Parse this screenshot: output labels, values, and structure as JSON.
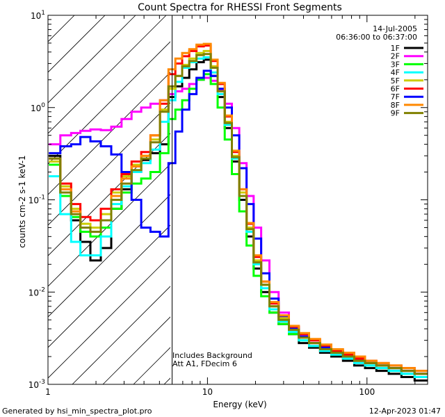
{
  "chart_data": {
    "type": "line",
    "title": "Count Spectra for RHESSI Front Segments",
    "xlabel": "Energy (keV)",
    "ylabel": "counts cm-2 s-1 keV-1",
    "xscale": "log",
    "yscale": "log",
    "xlim": [
      1,
      240
    ],
    "ylim": [
      0.001,
      10
    ],
    "x_tick_labels": [
      "1",
      "10",
      "100"
    ],
    "y_tick_labels": [
      {
        "base": "10",
        "exp": "-3"
      },
      {
        "base": "10",
        "exp": "-2"
      },
      {
        "base": "10",
        "exp": "-1"
      },
      {
        "base": "10",
        "exp": "0"
      },
      {
        "base": "10",
        "exp": "1"
      }
    ],
    "shaded_region_keV": [
      1,
      6
    ],
    "threshold_keV": 6,
    "date": "14-Jul-2005",
    "time_range": "06:36:00 to 06:37:00",
    "notes": [
      "Includes Background",
      "Att A1, FDecim 6"
    ],
    "energy_keV": [
      1.1,
      1.3,
      1.5,
      1.7,
      2.0,
      2.3,
      2.7,
      3.1,
      3.6,
      4.1,
      4.7,
      5.4,
      6.0,
      6.6,
      7.3,
      8.1,
      9.0,
      10.0,
      11.0,
      12.2,
      13.5,
      15.0,
      16.7,
      18.5,
      20.5,
      23.0,
      26.0,
      30.0,
      35.0,
      40.0,
      47.0,
      55.0,
      65.0,
      77.0,
      90.0,
      105.0,
      125.0,
      150.0,
      180.0,
      220.0
    ],
    "series": [
      {
        "name": "1F",
        "color": "#000000",
        "values": [
          0.3,
          0.12,
          0.06,
          0.035,
          0.022,
          0.03,
          0.08,
          0.13,
          0.2,
          0.27,
          0.32,
          0.4,
          1.3,
          1.7,
          2.1,
          2.6,
          3.1,
          3.3,
          2.2,
          1.3,
          0.6,
          0.26,
          0.1,
          0.04,
          0.018,
          0.01,
          0.006,
          0.0045,
          0.0035,
          0.0028,
          0.0025,
          0.0022,
          0.002,
          0.0018,
          0.0016,
          0.0015,
          0.0014,
          0.0013,
          0.0012,
          0.0011
        ]
      },
      {
        "name": "2F",
        "color": "#ff00ff",
        "values": [
          0.4,
          0.5,
          0.53,
          0.56,
          0.58,
          0.57,
          0.62,
          0.75,
          0.9,
          1.0,
          1.1,
          1.2,
          1.4,
          1.5,
          1.6,
          1.8,
          2.0,
          2.1,
          1.95,
          1.55,
          1.1,
          0.6,
          0.25,
          0.11,
          0.05,
          0.022,
          0.01,
          0.006,
          0.0042,
          0.0034,
          0.003,
          0.0026,
          0.0023,
          0.0021,
          0.0019,
          0.0017,
          0.0016,
          0.0015,
          0.0014,
          0.0013
        ]
      },
      {
        "name": "3F",
        "color": "#00ff00",
        "values": [
          0.24,
          0.11,
          0.065,
          0.045,
          0.04,
          0.05,
          0.08,
          0.12,
          0.15,
          0.17,
          0.2,
          0.32,
          0.75,
          0.95,
          1.2,
          1.6,
          2.0,
          2.3,
          1.8,
          1.0,
          0.45,
          0.19,
          0.075,
          0.032,
          0.015,
          0.009,
          0.006,
          0.0045,
          0.0035,
          0.003,
          0.0026,
          0.0023,
          0.0021,
          0.0019,
          0.0018,
          0.0016,
          0.0015,
          0.0014,
          0.0013,
          0.0012
        ]
      },
      {
        "name": "4F",
        "color": "#00ffff",
        "values": [
          0.18,
          0.07,
          0.035,
          0.025,
          0.025,
          0.04,
          0.09,
          0.14,
          0.2,
          0.25,
          0.35,
          0.7,
          1.2,
          1.9,
          2.7,
          3.1,
          3.4,
          3.5,
          2.4,
          1.4,
          0.65,
          0.28,
          0.11,
          0.045,
          0.02,
          0.011,
          0.0065,
          0.0048,
          0.0037,
          0.003,
          0.0026,
          0.0023,
          0.0021,
          0.0019,
          0.0017,
          0.0016,
          0.0015,
          0.0014,
          0.0013,
          0.0012
        ]
      },
      {
        "name": "5F",
        "color": "#cccc00",
        "values": [
          0.26,
          0.14,
          0.08,
          0.055,
          0.05,
          0.07,
          0.12,
          0.18,
          0.24,
          0.3,
          0.45,
          0.95,
          1.6,
          2.2,
          2.9,
          3.4,
          3.9,
          4.1,
          2.8,
          1.6,
          0.7,
          0.3,
          0.12,
          0.05,
          0.022,
          0.012,
          0.007,
          0.0052,
          0.004,
          0.0033,
          0.0028,
          0.0025,
          0.0022,
          0.002,
          0.0018,
          0.0017,
          0.0016,
          0.0015,
          0.0014,
          0.0013
        ]
      },
      {
        "name": "6F",
        "color": "#ff0000",
        "values": [
          0.28,
          0.15,
          0.09,
          0.065,
          0.06,
          0.08,
          0.13,
          0.19,
          0.26,
          0.33,
          0.5,
          1.1,
          2.3,
          3.0,
          3.6,
          4.1,
          4.6,
          4.7,
          3.2,
          1.8,
          0.8,
          0.33,
          0.13,
          0.055,
          0.024,
          0.013,
          0.0075,
          0.0055,
          0.0042,
          0.0035,
          0.003,
          0.0026,
          0.0023,
          0.0021,
          0.0019,
          0.0018,
          0.0017,
          0.0016,
          0.0015,
          0.0014
        ]
      },
      {
        "name": "7F",
        "color": "#0000ff",
        "values": [
          0.32,
          0.38,
          0.4,
          0.48,
          0.43,
          0.38,
          0.31,
          0.2,
          0.1,
          0.05,
          0.045,
          0.04,
          0.25,
          0.55,
          0.95,
          1.4,
          2.1,
          2.5,
          2.2,
          1.6,
          1.0,
          0.5,
          0.22,
          0.09,
          0.038,
          0.016,
          0.0085,
          0.0055,
          0.004,
          0.0033,
          0.0028,
          0.0025,
          0.0022,
          0.002,
          0.0018,
          0.0017,
          0.0016,
          0.0015,
          0.0014,
          0.0013
        ]
      },
      {
        "name": "8F",
        "color": "#ff8800",
        "values": [
          0.28,
          0.13,
          0.075,
          0.05,
          0.045,
          0.06,
          0.11,
          0.17,
          0.23,
          0.3,
          0.5,
          1.2,
          2.6,
          3.4,
          3.9,
          4.3,
          4.8,
          4.9,
          3.3,
          1.85,
          0.82,
          0.34,
          0.13,
          0.056,
          0.025,
          0.013,
          0.0078,
          0.0056,
          0.0043,
          0.0036,
          0.0031,
          0.0027,
          0.0024,
          0.0022,
          0.002,
          0.0018,
          0.0017,
          0.0016,
          0.0015,
          0.0014
        ]
      },
      {
        "name": "9F",
        "color": "#808000",
        "values": [
          0.28,
          0.12,
          0.07,
          0.05,
          0.045,
          0.06,
          0.1,
          0.15,
          0.21,
          0.28,
          0.42,
          0.9,
          1.7,
          2.2,
          2.8,
          3.2,
          3.7,
          3.8,
          2.7,
          1.5,
          0.68,
          0.29,
          0.11,
          0.048,
          0.021,
          0.012,
          0.007,
          0.005,
          0.0039,
          0.0032,
          0.0028,
          0.0024,
          0.0022,
          0.002,
          0.0018,
          0.0017,
          0.0016,
          0.0015,
          0.0014,
          0.0013
        ]
      }
    ]
  },
  "footer": {
    "generator": "Generated by hsi_min_spectra_plot.pro",
    "timestamp": "12-Apr-2023 01:47"
  }
}
